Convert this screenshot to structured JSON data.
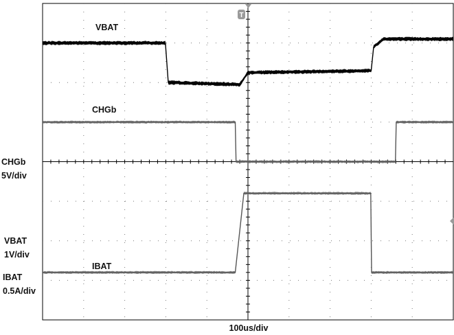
{
  "chart_data": {
    "type": "line",
    "title": "",
    "xlabel": "100us/div",
    "ylabel": "",
    "grid": true,
    "x_unit": "us",
    "x_range": [
      0,
      1000
    ],
    "y_range_div": [
      -4,
      4
    ],
    "trigger_marker": "T",
    "series": [
      {
        "name": "VBAT",
        "color": "#000000",
        "scale_label": "VBAT",
        "scale_value": "1V/div",
        "points": [
          [
            0,
            3.0
          ],
          [
            299,
            3.0
          ],
          [
            306,
            2.0
          ],
          [
            480,
            1.95
          ],
          [
            500,
            2.25
          ],
          [
            800,
            2.3
          ],
          [
            806,
            2.9
          ],
          [
            830,
            3.1
          ],
          [
            1000,
            3.1
          ]
        ]
      },
      {
        "name": "CHGb",
        "color": "#6e6e6e",
        "scale_label": "CHGb",
        "scale_value": "5V/div",
        "points": [
          [
            0,
            1.0
          ],
          [
            469,
            1.0
          ],
          [
            471,
            0.0
          ],
          [
            859,
            0.0
          ],
          [
            861,
            1.0
          ],
          [
            1000,
            1.0
          ]
        ]
      },
      {
        "name": "IBAT",
        "color": "#6e6e6e",
        "scale_label": "IBAT",
        "scale_value": "0.5A/div",
        "points": [
          [
            0,
            -2.8
          ],
          [
            469,
            -2.8
          ],
          [
            490,
            -0.8
          ],
          [
            799,
            -0.8
          ],
          [
            801,
            -2.8
          ],
          [
            1000,
            -2.8
          ]
        ]
      }
    ]
  }
}
